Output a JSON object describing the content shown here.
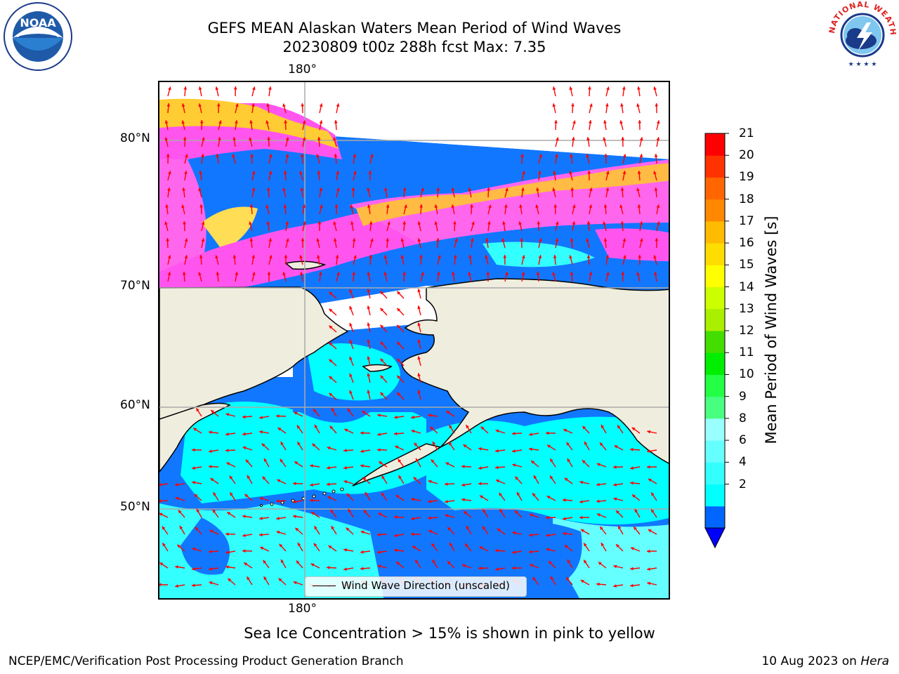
{
  "title": {
    "line1": "GEFS MEAN Alaskan Waters Mean Period of Wind Waves",
    "line2": "20230809 t00z 288h fcst   Max: 7.35"
  },
  "map": {
    "lon_label": "180°",
    "lat_labels": [
      "80°N",
      "70°N",
      "60°N",
      "50°N"
    ],
    "legend_label": "Wind Wave Direction (unscaled)",
    "arrow_color": "#ff0000",
    "land_color": "#efedde"
  },
  "colorbar": {
    "label": "Mean Period of Wind Waves [s]",
    "ticks": [
      "21",
      "20",
      "19",
      "18",
      "17",
      "16",
      "15",
      "14",
      "13",
      "12",
      "11",
      "10",
      "9",
      "8",
      "6",
      "4",
      "2"
    ],
    "colors": [
      "#0000ff",
      "#0066ff",
      "#00ffff",
      "#33ffff",
      "#66ffff",
      "#99ffff",
      "#49ff80",
      "#22ff44",
      "#00ee00",
      "#44dd00",
      "#aaee00",
      "#ccff00",
      "#ffff00",
      "#ffdd00",
      "#ffbb00",
      "#ff8800",
      "#ff6600",
      "#ff3300",
      "#ff0000"
    ]
  },
  "note": "Sea Ice Concentration > 15% is shown in pink to yellow",
  "footer": {
    "left": "NCEP/EMC/Verification Post Processing Product Generation Branch",
    "date": "10 Aug 2023 on",
    "host": "Hera"
  },
  "logos": {
    "noaa_text": "NOAA",
    "nws_text": "NATIONAL WEATHER SERVICE"
  }
}
